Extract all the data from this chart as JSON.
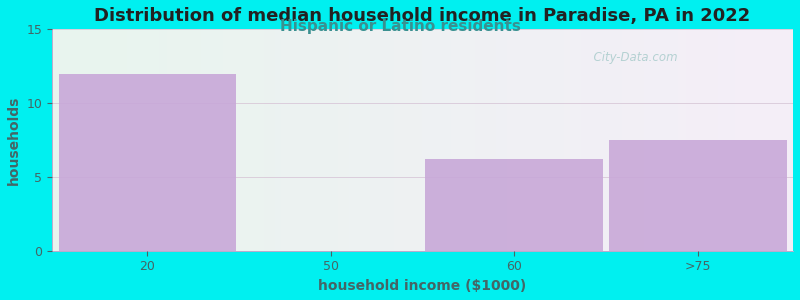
{
  "title": "Distribution of median household income in Paradise, PA in 2022",
  "subtitle": "Hispanic or Latino residents",
  "xlabel": "household income ($1000)",
  "ylabel": "households",
  "categories": [
    "20",
    "50",
    "60",
    ">75"
  ],
  "values": [
    12,
    0,
    6.2,
    7.5
  ],
  "bar_color": "#c8a8d8",
  "bar_positions": [
    0,
    1,
    2,
    3
  ],
  "ylim": [
    0,
    15
  ],
  "yticks": [
    0,
    5,
    10,
    15
  ],
  "background_color": "#00f0f0",
  "plot_bg_top_left": "#e8f5ee",
  "plot_bg_top_right": "#eaf5f5",
  "plot_bg_bottom": "#f5eef8",
  "title_fontsize": 13,
  "subtitle_fontsize": 11,
  "subtitle_color": "#3a9090",
  "axis_label_color": "#446666",
  "tick_label_color": "#446666",
  "axis_label_fontsize": 10,
  "watermark": "  City-Data.com",
  "watermark_color": "#aacccc"
}
